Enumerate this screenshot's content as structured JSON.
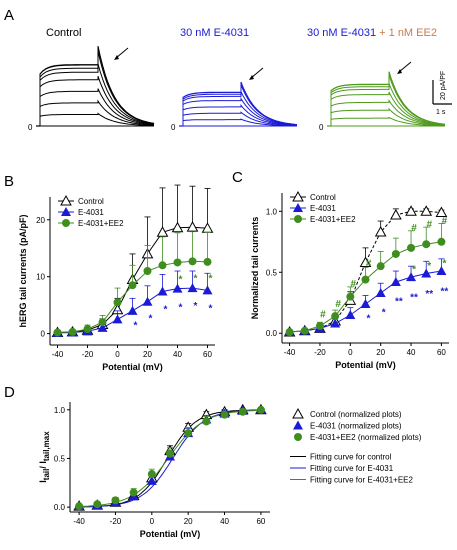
{
  "panels": {
    "A": "A",
    "B": "B",
    "C": "C",
    "D": "D"
  },
  "traces": {
    "zero": "0",
    "scalebar_y": "20 pA/PF",
    "scalebar_x": "1 s",
    "groups": [
      {
        "title": "Control",
        "color": "#000000",
        "title_color": "#000000"
      },
      {
        "title": "30 nM E-4031",
        "color": "#1b1bd6",
        "title_color": "#1b1bd6"
      },
      {
        "title_main": "30 nM E-4031",
        "title_extra": " + 1 nM EE2",
        "color": "#4f9a1e",
        "title_color": "#1b1bd6",
        "extra_color": "#c97a4f"
      }
    ]
  },
  "colors": {
    "control": "#000000",
    "e4031": "#1b1bd6",
    "ee2": "#3f8d1f",
    "star_blue": "#1b1bd6",
    "hash_green": "#3f8d1f"
  },
  "chart_data": [
    {
      "id": "B",
      "type": "line",
      "xlabel": "Potential (mV)",
      "ylabel": "hERG tail currents (pA/pF)",
      "xlim": [
        -45,
        65
      ],
      "ylim": [
        -2,
        24
      ],
      "xticks": [
        -40,
        -20,
        0,
        20,
        40,
        60
      ],
      "yticks": [
        0,
        10,
        20
      ],
      "x": [
        -40,
        -30,
        -20,
        -10,
        0,
        10,
        20,
        30,
        40,
        50,
        60
      ],
      "legend": {
        "placement": "top-left",
        "entries": [
          "Control",
          "E-4031",
          "E-4031+EE2"
        ]
      },
      "series": [
        {
          "name": "Control",
          "marker": "triangle-open",
          "values": [
            0.2,
            0.3,
            0.6,
            1.6,
            4.2,
            9.5,
            14.0,
            17.8,
            18.6,
            18.7,
            18.5
          ],
          "err": [
            0.3,
            0.4,
            0.6,
            1.0,
            2.0,
            4.5,
            6.5,
            7.8,
            7.5,
            7.2,
            7.0
          ]
        },
        {
          "name": "E-4031",
          "marker": "triangle-filled",
          "values": [
            0.1,
            0.2,
            0.4,
            1.0,
            2.5,
            4.0,
            5.6,
            7.4,
            7.9,
            8.0,
            7.6
          ],
          "err": [
            0.2,
            0.2,
            0.4,
            0.8,
            1.5,
            2.2,
            2.8,
            3.0,
            3.1,
            3.0,
            3.0
          ]
        },
        {
          "name": "E-4031+EE2",
          "marker": "circle-filled",
          "values": [
            0.2,
            0.3,
            0.8,
            2.0,
            5.5,
            8.5,
            11.0,
            12.0,
            12.5,
            12.7,
            12.6
          ],
          "err": [
            0.3,
            0.4,
            0.7,
            1.2,
            2.5,
            3.5,
            4.5,
            5.0,
            5.2,
            5.2,
            5.2
          ]
        }
      ],
      "annotations": [
        {
          "text": "*",
          "x": 10,
          "y": 1.6,
          "series": "E-4031"
        },
        {
          "text": "*",
          "x": 20,
          "y": 2.8,
          "series": "E-4031"
        },
        {
          "text": "*",
          "x": 30,
          "y": 4.4,
          "series": "E-4031"
        },
        {
          "text": "*",
          "x": 40,
          "y": 4.8,
          "series": "E-4031"
        },
        {
          "text": "*",
          "x": 50,
          "y": 5.0,
          "series": "E-4031"
        },
        {
          "text": "*",
          "x": 60,
          "y": 4.6,
          "series": "E-4031"
        },
        {
          "text": "*",
          "x": 40,
          "y": 9.7,
          "series": "E-4031+EE2"
        },
        {
          "text": "*",
          "x": 50,
          "y": 9.9,
          "series": "E-4031+EE2"
        },
        {
          "text": "*",
          "x": 60,
          "y": 9.9,
          "series": "E-4031+EE2"
        }
      ]
    },
    {
      "id": "C",
      "type": "line",
      "xlabel": "Potential (mV)",
      "ylabel": "Normalized tail currents",
      "xlim": [
        -45,
        65
      ],
      "ylim": [
        -0.08,
        1.15
      ],
      "xticks": [
        -40,
        -20,
        0,
        20,
        40,
        60
      ],
      "yticks": [
        0.0,
        0.5,
        1.0
      ],
      "x": [
        -40,
        -30,
        -20,
        -10,
        0,
        10,
        20,
        30,
        40,
        50,
        60
      ],
      "legend": {
        "placement": "top-left",
        "entries": [
          "Control",
          "E-4031",
          "E-4031+EE2"
        ]
      },
      "series": [
        {
          "name": "Control",
          "marker": "triangle-open",
          "values": [
            0.01,
            0.02,
            0.04,
            0.1,
            0.27,
            0.58,
            0.83,
            0.97,
            1.0,
            1.0,
            0.99
          ],
          "err": [
            0.01,
            0.01,
            0.02,
            0.04,
            0.07,
            0.12,
            0.09,
            0.05,
            0.02,
            0.02,
            0.02
          ]
        },
        {
          "name": "E-4031",
          "marker": "triangle-filled",
          "values": [
            0.01,
            0.02,
            0.04,
            0.08,
            0.15,
            0.24,
            0.33,
            0.42,
            0.46,
            0.49,
            0.51
          ],
          "err": [
            0.01,
            0.01,
            0.02,
            0.04,
            0.06,
            0.07,
            0.08,
            0.09,
            0.09,
            0.1,
            0.1
          ]
        },
        {
          "name": "E-4031+EE2",
          "marker": "circle-filled",
          "values": [
            0.01,
            0.02,
            0.06,
            0.14,
            0.3,
            0.44,
            0.55,
            0.65,
            0.7,
            0.73,
            0.75
          ],
          "err": [
            0.01,
            0.02,
            0.03,
            0.05,
            0.08,
            0.1,
            0.12,
            0.13,
            0.14,
            0.14,
            0.15
          ]
        }
      ],
      "annotations": [
        {
          "text": "#",
          "x": -20,
          "y": 0.16,
          "series": "E-4031+EE2"
        },
        {
          "text": "#",
          "x": -10,
          "y": 0.25,
          "series": "E-4031+EE2"
        },
        {
          "text": "#",
          "x": 0,
          "y": 0.41,
          "series": "E-4031+EE2"
        },
        {
          "text": "#",
          "x": 10,
          "y": 0.58,
          "series": "E-4031+EE2"
        },
        {
          "text": "#",
          "x": 40,
          "y": 0.87,
          "series": "E-4031+EE2"
        },
        {
          "text": "#",
          "x": 50,
          "y": 0.9,
          "series": "E-4031+EE2"
        },
        {
          "text": "#",
          "x": 60,
          "y": 0.93,
          "series": "E-4031+EE2"
        },
        {
          "text": "*",
          "x": 10,
          "y": 0.13,
          "series": "E-4031"
        },
        {
          "text": "*",
          "x": 20,
          "y": 0.18,
          "series": "E-4031"
        },
        {
          "text": "**",
          "x": 30,
          "y": 0.27,
          "series": "E-4031"
        },
        {
          "text": "**",
          "x": 40,
          "y": 0.3,
          "series": "E-4031"
        },
        {
          "text": "**",
          "x": 50,
          "y": 0.33,
          "series": "E-4031"
        },
        {
          "text": "**",
          "x": 60,
          "y": 0.35,
          "series": "E-4031"
        },
        {
          "text": "*",
          "x": 40,
          "y": 0.53,
          "series": "E-4031+EE2"
        },
        {
          "text": "*",
          "x": 50,
          "y": 0.56,
          "series": "E-4031+EE2"
        },
        {
          "text": "*",
          "x": 60,
          "y": 0.58,
          "series": "E-4031+EE2"
        }
      ]
    },
    {
      "id": "D",
      "type": "line",
      "xlabel": "Potential (mV)",
      "ylabel_main": "I",
      "ylabel_sub1": "tail",
      "ylabel_mid": "/ I",
      "ylabel_sub2": "tail,max",
      "xlim": [
        -45,
        65
      ],
      "ylim": [
        -0.05,
        1.08
      ],
      "xticks": [
        -40,
        -20,
        0,
        20,
        40,
        60
      ],
      "yticks": [
        0.0,
        0.5,
        1.0
      ],
      "x": [
        -40,
        -30,
        -20,
        -10,
        0,
        10,
        20,
        30,
        40,
        50,
        60
      ],
      "legend": {
        "placement": "right",
        "entries": [
          "Control (normalized plots)",
          "E-4031 (normalized plots)",
          "E-4031+EE2 (normalized plots)",
          "Fitting curve for control",
          "Fitting curve for E-4031",
          "Fitting curve for E-4031+EE2"
        ]
      },
      "series": [
        {
          "name": "Control (normalized plots)",
          "marker": "triangle-open",
          "values": [
            0.01,
            0.02,
            0.05,
            0.12,
            0.3,
            0.58,
            0.82,
            0.95,
            0.98,
            1.0,
            1.0
          ],
          "err": [
            0.01,
            0.01,
            0.02,
            0.03,
            0.05,
            0.05,
            0.04,
            0.03,
            0.02,
            0.01,
            0.01
          ]
        },
        {
          "name": "E-4031 (normalized plots)",
          "marker": "triangle-filled",
          "values": [
            0.01,
            0.02,
            0.05,
            0.11,
            0.27,
            0.52,
            0.76,
            0.9,
            0.96,
            0.99,
            1.0
          ],
          "err": [
            0.01,
            0.01,
            0.02,
            0.03,
            0.05,
            0.06,
            0.05,
            0.04,
            0.03,
            0.02,
            0.01
          ]
        },
        {
          "name": "E-4031+EE2 (normalized plots)",
          "marker": "circle-filled",
          "values": [
            0.01,
            0.03,
            0.07,
            0.15,
            0.34,
            0.55,
            0.76,
            0.88,
            0.95,
            0.98,
            1.0
          ],
          "err": [
            0.01,
            0.02,
            0.03,
            0.04,
            0.05,
            0.06,
            0.06,
            0.05,
            0.03,
            0.02,
            0.01
          ]
        }
      ],
      "fits": [
        {
          "name": "Fitting curve for control",
          "v_half": 8.5,
          "k": 8.0,
          "color": "#000000"
        },
        {
          "name": "Fitting curve for E-4031",
          "v_half": 11.5,
          "k": 8.5,
          "color": "#1b1bd6"
        },
        {
          "name": "Fitting curve for E-4031+EE2",
          "v_half": 9.0,
          "k": 9.8,
          "color": "#3f8d1f"
        }
      ]
    }
  ]
}
